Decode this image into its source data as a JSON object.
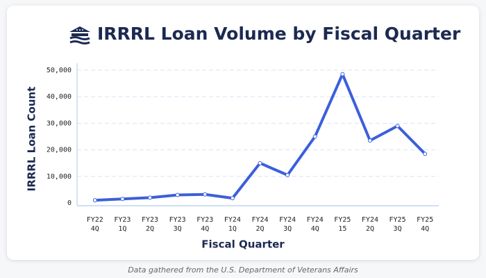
{
  "chart_data": {
    "type": "line",
    "title": "IRRRL Loan Volume by Fiscal Quarter",
    "x_label": "Fiscal Quarter",
    "y_label": "IRRRL Loan Count",
    "caption": "Data gathered from the U.S. Department of Veterans Affairs",
    "categories": [
      [
        "FY22",
        "4Q"
      ],
      [
        "FY23",
        "1Q"
      ],
      [
        "FY23",
        "2Q"
      ],
      [
        "FY23",
        "3Q"
      ],
      [
        "FY23",
        "4Q"
      ],
      [
        "FY24",
        "1Q"
      ],
      [
        "FY24",
        "2Q"
      ],
      [
        "FY24",
        "3Q"
      ],
      [
        "FY24",
        "4Q"
      ],
      [
        "FY25",
        "15"
      ],
      [
        "FY24",
        "2Q"
      ],
      [
        "FY25",
        "3Q"
      ],
      [
        "FY25",
        "4Q"
      ]
    ],
    "series": [
      {
        "name": "IRRRL Loan Count",
        "color": "#3b5fdb",
        "values": [
          1000,
          1500,
          2000,
          3000,
          3200,
          1800,
          15000,
          10500,
          25000,
          48500,
          23500,
          29000,
          18500
        ]
      }
    ],
    "ylim": [
      0,
      50000
    ],
    "yticks": [
      0,
      {
        "value": 10000,
        "label": "10,000"
      },
      {
        "value": 20000,
        "label": "20,000"
      },
      {
        "value": 30000,
        "label": "30,000"
      },
      {
        "value": 40000,
        "label": "40,000"
      },
      {
        "value": 50000,
        "label": "50,000"
      }
    ],
    "grid": true
  }
}
